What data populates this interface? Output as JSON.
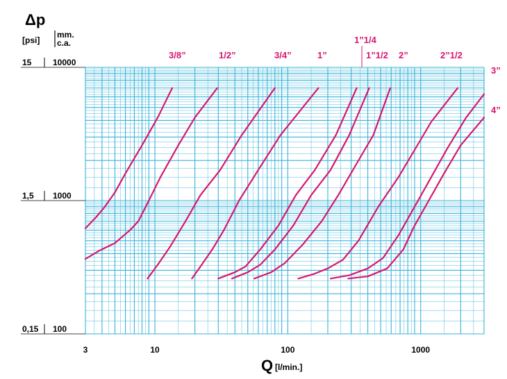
{
  "chart_data": {
    "type": "line",
    "title": "Δp",
    "xlabel": "Q",
    "xunit": "[l/min.]",
    "x_scale": "log",
    "y_scale": "log",
    "xlim": [
      3,
      3000
    ],
    "ylim_mmca": [
      100,
      10000
    ],
    "grid": true,
    "y_units": {
      "psi": "[psi]",
      "mmca_top": "mm.",
      "mmca_bottom": "c.a."
    },
    "y_ticks": [
      {
        "psi": "15",
        "mmca": "10000",
        "value": 10000
      },
      {
        "psi": "1,5",
        "mmca": "1000",
        "value": 1000
      },
      {
        "psi": "0,15",
        "mmca": "100",
        "value": 100
      }
    ],
    "x_ticks": [
      {
        "label": "3",
        "value": 3
      },
      {
        "label": "10",
        "value": 10
      },
      {
        "label": "100",
        "value": 100
      },
      {
        "label": "1000",
        "value": 1000
      }
    ],
    "colors": {
      "grid": "#36b3d9",
      "curves": "#d6166f",
      "axis_text": "#000000"
    },
    "series": [
      {
        "name": "3/8”",
        "points": [
          [
            3,
            620
          ],
          [
            3.6,
            750
          ],
          [
            4.2,
            900
          ],
          [
            5,
            1150
          ],
          [
            6,
            1600
          ],
          [
            8,
            2600
          ],
          [
            10.5,
            4200
          ],
          [
            13.5,
            7000
          ]
        ]
      },
      {
        "name": "1/2”",
        "points": [
          [
            3,
            365
          ],
          [
            3.8,
            420
          ],
          [
            5,
            480
          ],
          [
            6.5,
            600
          ],
          [
            7.5,
            700
          ],
          [
            9,
            1000
          ],
          [
            11,
            1500
          ],
          [
            15,
            2600
          ],
          [
            20,
            4200
          ],
          [
            29.5,
            7000
          ]
        ]
      },
      {
        "name": "3/4”",
        "points": [
          [
            8.8,
            260
          ],
          [
            10.5,
            330
          ],
          [
            13,
            450
          ],
          [
            17,
            700
          ],
          [
            22,
            1100
          ],
          [
            31,
            1700
          ],
          [
            45,
            3100
          ],
          [
            80,
            7000
          ]
        ]
      },
      {
        "name": "1”",
        "points": [
          [
            19,
            260
          ],
          [
            22,
            320
          ],
          [
            27,
            430
          ],
          [
            33,
            600
          ],
          [
            43,
            1000
          ],
          [
            60,
            1700
          ],
          [
            88,
            3100
          ],
          [
            170,
            7000
          ]
        ]
      },
      {
        "name": "1”1/4",
        "points": [
          [
            30,
            260
          ],
          [
            40,
            290
          ],
          [
            48,
            320
          ],
          [
            62,
            430
          ],
          [
            85,
            650
          ],
          [
            115,
            1100
          ],
          [
            160,
            1700
          ],
          [
            230,
            3100
          ],
          [
            330,
            7000
          ]
        ]
      },
      {
        "name": "1”1/2",
        "points": [
          [
            38,
            260
          ],
          [
            50,
            290
          ],
          [
            62,
            330
          ],
          [
            80,
            430
          ],
          [
            110,
            650
          ],
          [
            150,
            1100
          ],
          [
            210,
            1700
          ],
          [
            290,
            3100
          ],
          [
            410,
            7000
          ]
        ]
      },
      {
        "name": "2”",
        "points": [
          [
            56,
            260
          ],
          [
            75,
            290
          ],
          [
            95,
            340
          ],
          [
            130,
            470
          ],
          [
            180,
            700
          ],
          [
            240,
            1100
          ],
          [
            330,
            1900
          ],
          [
            440,
            3100
          ],
          [
            590,
            7000
          ]
        ]
      },
      {
        "name": "2”1/2",
        "points": [
          [
            120,
            260
          ],
          [
            155,
            280
          ],
          [
            200,
            310
          ],
          [
            260,
            360
          ],
          [
            340,
            500
          ],
          [
            480,
            900
          ],
          [
            680,
            1500
          ],
          [
            900,
            2400
          ],
          [
            1200,
            3900
          ],
          [
            1900,
            7000
          ]
        ]
      },
      {
        "name": "3”",
        "points": [
          [
            210,
            260
          ],
          [
            290,
            275
          ],
          [
            400,
            310
          ],
          [
            520,
            370
          ],
          [
            680,
            550
          ],
          [
            900,
            900
          ],
          [
            1200,
            1500
          ],
          [
            1600,
            2500
          ],
          [
            2200,
            4200
          ],
          [
            3000,
            6300
          ]
        ]
      },
      {
        "name": "4”",
        "points": [
          [
            285,
            260
          ],
          [
            400,
            270
          ],
          [
            560,
            310
          ],
          [
            740,
            430
          ],
          [
            900,
            650
          ],
          [
            1150,
            1000
          ],
          [
            1500,
            1600
          ],
          [
            2000,
            2600
          ],
          [
            3000,
            4200
          ]
        ]
      }
    ]
  }
}
